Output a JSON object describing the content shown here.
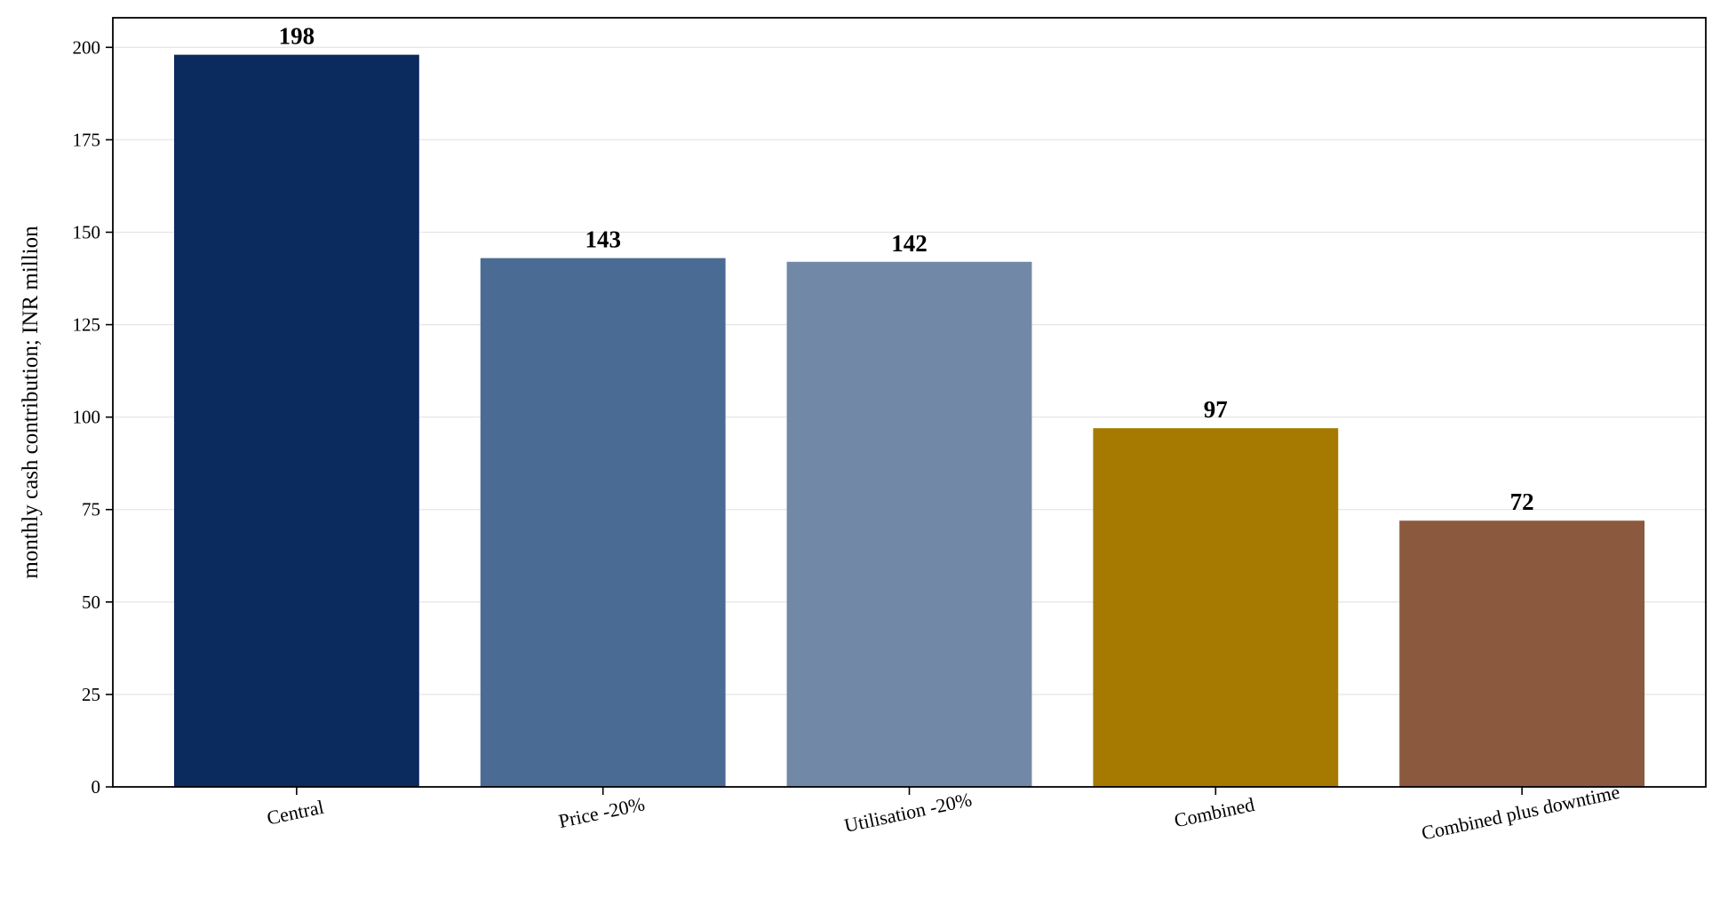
{
  "chart_data": {
    "type": "bar",
    "categories": [
      "Central",
      "Price -20%",
      "Utilisation -20%",
      "Combined",
      "Combined plus downtime"
    ],
    "values": [
      198,
      143,
      142,
      97,
      72
    ],
    "value_labels": [
      "198",
      "143",
      "142",
      "97",
      "72"
    ],
    "colors": [
      "#0b2a5e",
      "#4a6b93",
      "#7288a7",
      "#a67a00",
      "#8b5a3e"
    ],
    "title": "",
    "xlabel": "",
    "ylabel": "monthly cash contribution; INR million",
    "ylim": [
      0,
      208
    ],
    "yticks": [
      0,
      25,
      50,
      75,
      100,
      125,
      150,
      175,
      200
    ],
    "ytick_labels": [
      "0",
      "25",
      "50",
      "75",
      "100",
      "125",
      "150",
      "175",
      "200"
    ],
    "grid": "horizontal",
    "legend": "none"
  }
}
